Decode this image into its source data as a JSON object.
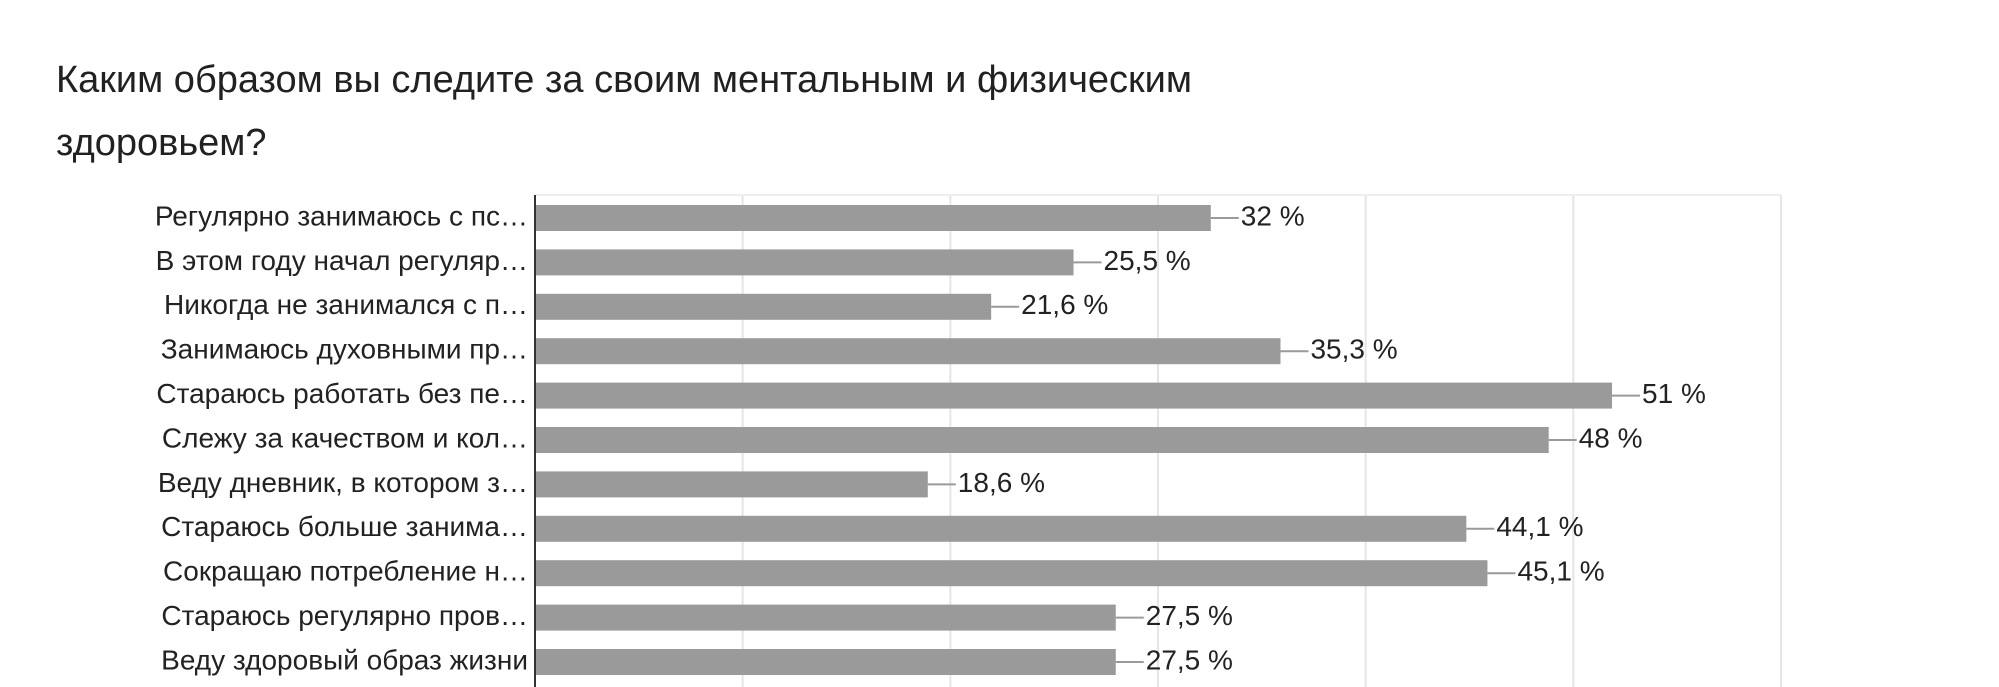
{
  "chart_data": {
    "type": "bar",
    "orientation": "horizontal",
    "title": "Каким образом вы следите за своим ментальным и физическим",
    "title_line2": "здоровьем?",
    "categories": [
      "Регулярно занимаюсь с пс…",
      "В этом году начал регуляр…",
      "Никогда не занимался с п…",
      "Занимаюсь духовными пр…",
      "Стараюсь работать без пе…",
      "Слежу за качеством и кол…",
      "Веду дневник, в котором з…",
      "Стараюсь больше занима…",
      "Сокращаю потребление н…",
      "Стараюсь регулярно пров…",
      "Веду здоровый образ жизни"
    ],
    "values": [
      32,
      25.5,
      21.6,
      35.3,
      51,
      48,
      18.6,
      44.1,
      45.1,
      27.5,
      27.5
    ],
    "value_labels": [
      "32 %",
      "25,5 %",
      "21,6 %",
      "35,3 %",
      "51 %",
      "48 %",
      "18,6 %",
      "44,1 %",
      "45,1 %",
      "27,5 %",
      "27,5 %"
    ],
    "color": "#9a9a9a",
    "xlim": [
      0,
      59
    ],
    "grid": true,
    "grid_divisions": 6
  }
}
